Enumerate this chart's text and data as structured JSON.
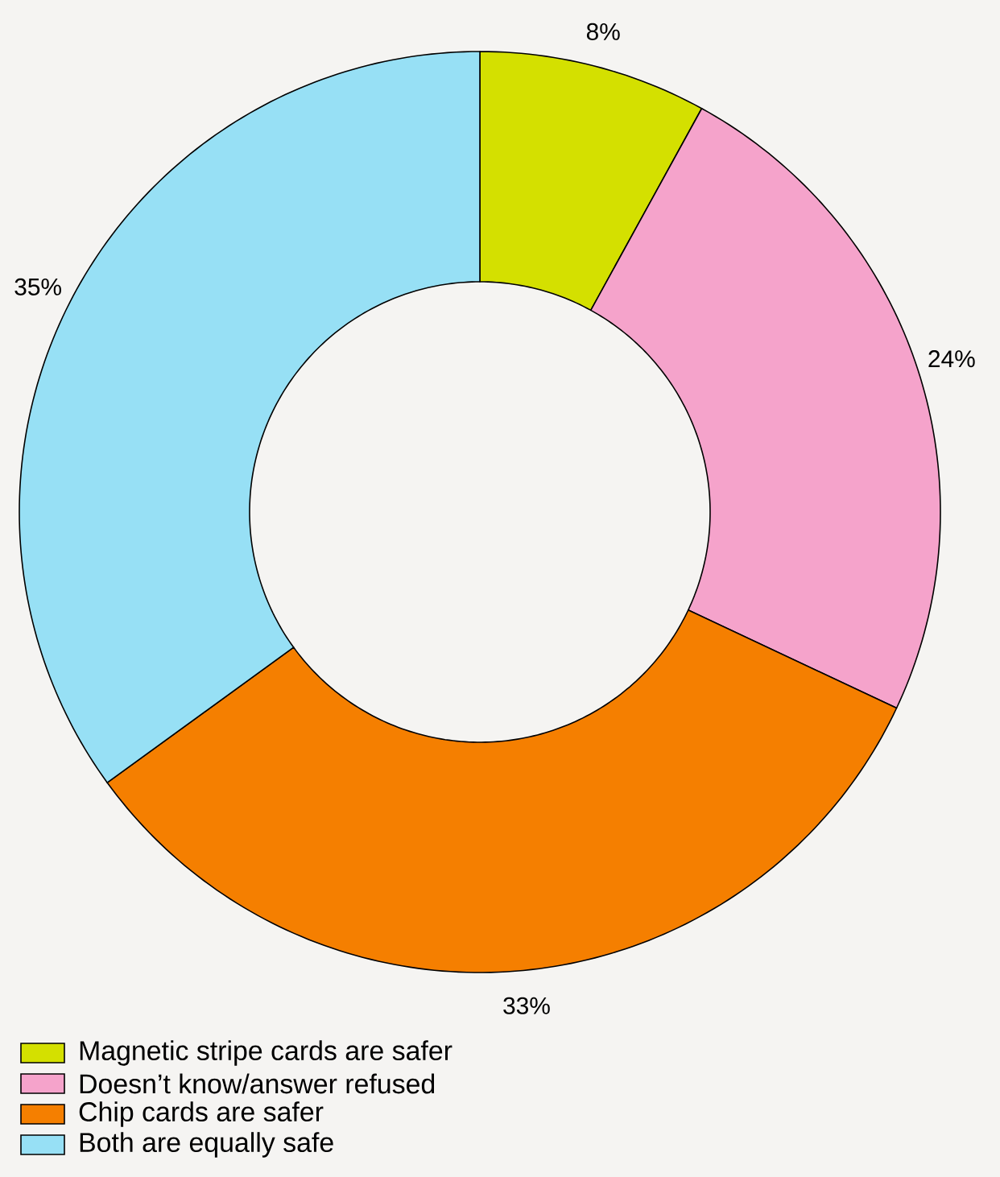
{
  "chart_data": {
    "type": "donut",
    "categories": [
      "Magnetic stripe cards are safer",
      "Doesn’t know/answer refused",
      "Chip cards are safer",
      "Both are equally safe"
    ],
    "values": [
      8,
      24,
      33,
      35
    ],
    "colors": [
      "#d4e000",
      "#f5a3cb",
      "#f57f00",
      "#97e0f5"
    ],
    "value_labels": [
      "8%",
      "24%",
      "33%",
      "35%"
    ],
    "legend": "bottom left"
  }
}
